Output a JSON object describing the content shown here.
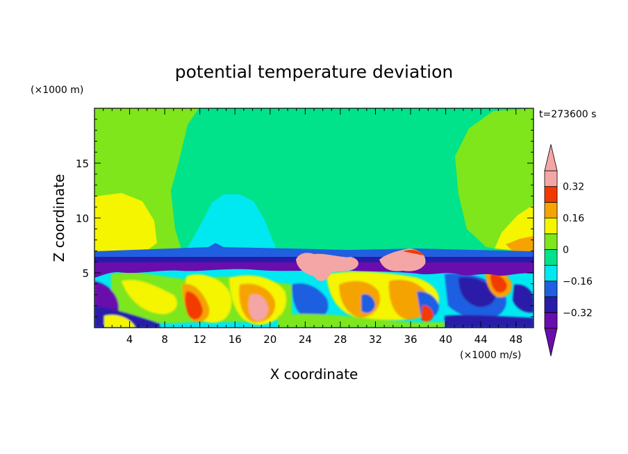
{
  "chart_data": {
    "type": "heatmap",
    "title": "potential temperature deviation",
    "xlabel": "X coordinate",
    "ylabel": "Z coordinate",
    "x_unit": "(×1000 m/s)",
    "y_unit": "(×1000 m)",
    "time_label": "t=273600 s",
    "xlim": [
      0,
      50
    ],
    "ylim": [
      0,
      20
    ],
    "x_ticks": [
      4,
      8,
      12,
      16,
      20,
      24,
      28,
      32,
      36,
      40,
      44,
      48
    ],
    "x_tick_labels": [
      "4",
      "8",
      "12",
      "16",
      "20",
      "24",
      "28",
      "32",
      "36",
      "40",
      "44",
      "48"
    ],
    "y_ticks": [
      5,
      10,
      15
    ],
    "y_tick_labels": [
      "5",
      "10",
      "15"
    ],
    "colorbar": {
      "levels": [
        -0.4,
        -0.32,
        -0.24,
        -0.16,
        -0.08,
        0,
        0.08,
        0.16,
        0.24,
        0.32,
        0.4
      ],
      "tick_values": [
        0.32,
        0.16,
        0,
        -0.16,
        -0.32
      ],
      "tick_labels": [
        "0.32",
        "0.16",
        "0",
        "−0.16",
        "−0.32"
      ],
      "colors": [
        "#6a0dad",
        "#2a1aa8",
        "#1f5fe0",
        "#00e8f0",
        "#00e38a",
        "#7ee61a",
        "#f5f500",
        "#f5a300",
        "#f23a00",
        "#f4a6a6"
      ],
      "extend": "both"
    }
  }
}
